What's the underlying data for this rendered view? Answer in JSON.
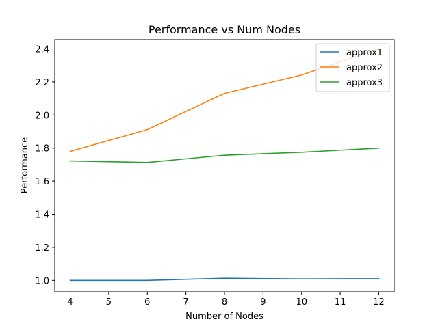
{
  "chart_data": {
    "type": "line",
    "title": "Performance vs Num Nodes",
    "xlabel": "Number of Nodes",
    "ylabel": "Performance",
    "x": [
      4,
      6,
      8,
      10,
      12
    ],
    "xticks": [
      4,
      5,
      6,
      7,
      8,
      9,
      10,
      11,
      12
    ],
    "yticks": [
      "1.0",
      "1.2",
      "1.4",
      "1.6",
      "1.8",
      "2.0",
      "2.2",
      "2.4"
    ],
    "xlim": [
      3.6,
      12.4
    ],
    "ylim": [
      0.931,
      2.456
    ],
    "grid": false,
    "legend_position": "top-right",
    "series": [
      {
        "name": "approx1",
        "color": "#1f77b4",
        "values": [
          1.0,
          1.0,
          1.013,
          1.009,
          1.01
        ]
      },
      {
        "name": "approx2",
        "color": "#ff7f0e",
        "values": [
          1.78,
          1.912,
          2.131,
          2.242,
          2.4
        ]
      },
      {
        "name": "approx3",
        "color": "#2ca02c",
        "values": [
          1.722,
          1.713,
          1.757,
          1.775,
          1.8
        ]
      }
    ]
  }
}
